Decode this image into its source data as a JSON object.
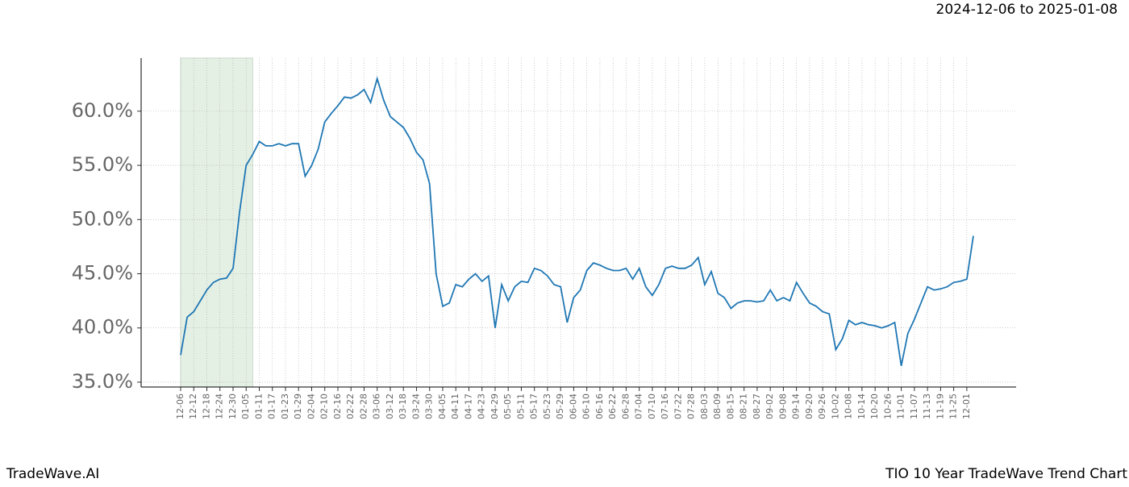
{
  "header": {
    "date_range": "2024-12-06 to 2025-01-08"
  },
  "footer": {
    "brand": "TradeWave.AI",
    "chart_name": "TIO 10 Year TradeWave Trend Chart"
  },
  "chart_data": {
    "type": "line",
    "categories": [
      "12-06",
      null,
      "12-12",
      null,
      "12-18",
      null,
      "12-24",
      null,
      "12-30",
      null,
      "01-05",
      null,
      "01-11",
      null,
      "01-17",
      null,
      "01-23",
      null,
      "01-29",
      null,
      "02-04",
      null,
      "02-10",
      null,
      "02-16",
      null,
      "02-22",
      null,
      "02-28",
      null,
      "03-06",
      null,
      "03-12",
      null,
      "03-18",
      null,
      "03-24",
      null,
      "03-30",
      null,
      "04-05",
      null,
      "04-11",
      null,
      "04-17",
      null,
      "04-23",
      null,
      "04-29",
      null,
      "05-05",
      null,
      "05-11",
      null,
      "05-17",
      null,
      "05-23",
      null,
      "05-29",
      null,
      "06-04",
      null,
      "06-10",
      null,
      "06-16",
      null,
      "06-22",
      null,
      "06-28",
      null,
      "07-04",
      null,
      "07-10",
      null,
      "07-16",
      null,
      "07-22",
      null,
      "07-28",
      null,
      "08-03",
      null,
      "08-09",
      null,
      "08-15",
      null,
      "08-21",
      null,
      "08-27",
      null,
      "09-02",
      null,
      "09-08",
      null,
      "09-14",
      null,
      "09-20",
      null,
      "09-26",
      null,
      "10-02",
      null,
      "10-08",
      null,
      "10-14",
      null,
      "10-20",
      null,
      "10-26",
      null,
      "11-01",
      null,
      "11-07",
      null,
      "11-13",
      null,
      "11-19",
      null,
      "11-25",
      null,
      "12-01",
      null
    ],
    "series": [
      {
        "color": "#1f77b4",
        "values": [
          37.5,
          41.0,
          41.5,
          42.5,
          43.5,
          44.2,
          44.5,
          44.6,
          45.5,
          50.7,
          55.0,
          56.0,
          57.2,
          56.8,
          56.8,
          57.0,
          56.8,
          57.0,
          57.0,
          54.0,
          55.0,
          56.5,
          59.0,
          59.8,
          60.5,
          61.3,
          61.2,
          61.5,
          62.0,
          60.8,
          63.0,
          61.0,
          59.5,
          59.0,
          58.5,
          57.5,
          56.2,
          55.5,
          53.3,
          45.0,
          42.0,
          42.3,
          44.0,
          43.8,
          44.5,
          45.0,
          44.3,
          44.8,
          40.0,
          44.0,
          42.5,
          43.8,
          44.3,
          44.2,
          45.5,
          45.3,
          44.8,
          44.0,
          43.8,
          40.5,
          42.8,
          43.5,
          45.3,
          46.0,
          45.8,
          45.5,
          45.3,
          45.3,
          45.5,
          44.5,
          45.5,
          43.8,
          43.0,
          44.0,
          45.5,
          45.7,
          45.5,
          45.5,
          45.8,
          46.5,
          44.0,
          45.2,
          43.2,
          42.8,
          41.8,
          42.3,
          42.5,
          42.5,
          42.4,
          42.5,
          43.5,
          42.5,
          42.8,
          42.5,
          44.2,
          43.2,
          42.3,
          42.0,
          41.5,
          41.3,
          38.0,
          39.0,
          40.7,
          40.3,
          40.5,
          40.3,
          40.2,
          40.0,
          40.2,
          40.5,
          36.5,
          39.5,
          40.8,
          42.3,
          43.8,
          43.5,
          43.6,
          43.8,
          44.2,
          44.3,
          44.5,
          48.5
        ]
      }
    ],
    "ylim": [
      34.55,
      64.9
    ],
    "yticks": [
      {
        "value": 35,
        "label": "35.0%"
      },
      {
        "value": 40,
        "label": "40.0%"
      },
      {
        "value": 45,
        "label": "45.0%"
      },
      {
        "value": 50,
        "label": "50.0%"
      },
      {
        "value": 55,
        "label": "55.0%"
      },
      {
        "value": 60,
        "label": "60.0%"
      }
    ],
    "grid": true,
    "shade": {
      "start": 0,
      "end": 11,
      "color": "#e5f0e5"
    }
  }
}
